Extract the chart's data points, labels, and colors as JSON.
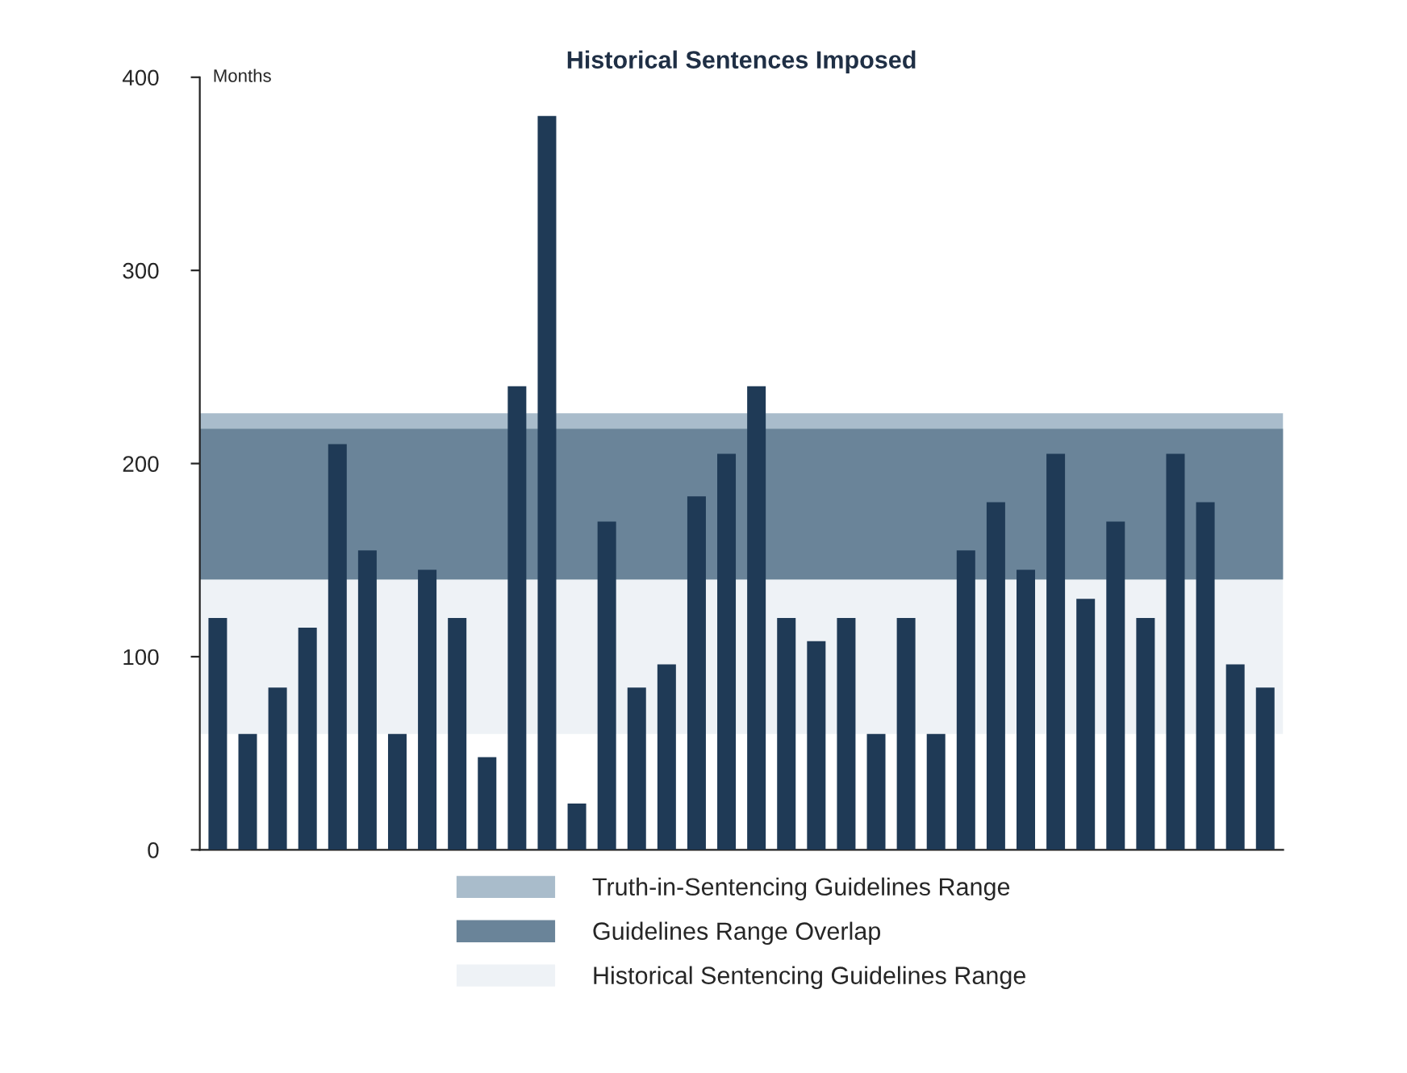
{
  "chart_data": {
    "type": "bar",
    "title": "Historical Sentences Imposed",
    "ylabel": "Months",
    "categories": [
      null,
      null,
      null,
      null,
      null,
      null,
      null,
      null,
      null,
      null,
      null,
      null,
      null,
      null,
      null,
      null,
      null,
      null,
      null,
      null,
      null,
      null,
      null,
      null,
      null,
      null,
      null,
      null,
      null,
      null,
      null,
      null,
      null,
      null,
      null,
      null
    ],
    "values": [
      120,
      60,
      84,
      115,
      210,
      155,
      60,
      145,
      120,
      48,
      240,
      380,
      24,
      170,
      84,
      96,
      183,
      205,
      240,
      120,
      108,
      120,
      60,
      120,
      60,
      155,
      180,
      145,
      205,
      130,
      170,
      120,
      205,
      180,
      96,
      84
    ],
    "color": "#1f3a56",
    "ylim": [
      0,
      400
    ],
    "yticks": [
      0,
      100,
      200,
      300,
      400
    ],
    "tick_labels": "y",
    "grid": false,
    "legend": "bottom",
    "bands": [
      {
        "axis": "y",
        "from": 60,
        "to": 218,
        "label": "Historical Sentencing Guidelines Range",
        "color": "#eef2f6"
      },
      {
        "axis": "y",
        "from": 140,
        "to": 226,
        "label": "Truth-in-Sentencing Guidelines Range",
        "color": "#a9bccb"
      },
      {
        "axis": "y",
        "from": 140,
        "to": 218,
        "label": "Guidelines Range Overlap",
        "color": "#6a8499"
      }
    ]
  }
}
